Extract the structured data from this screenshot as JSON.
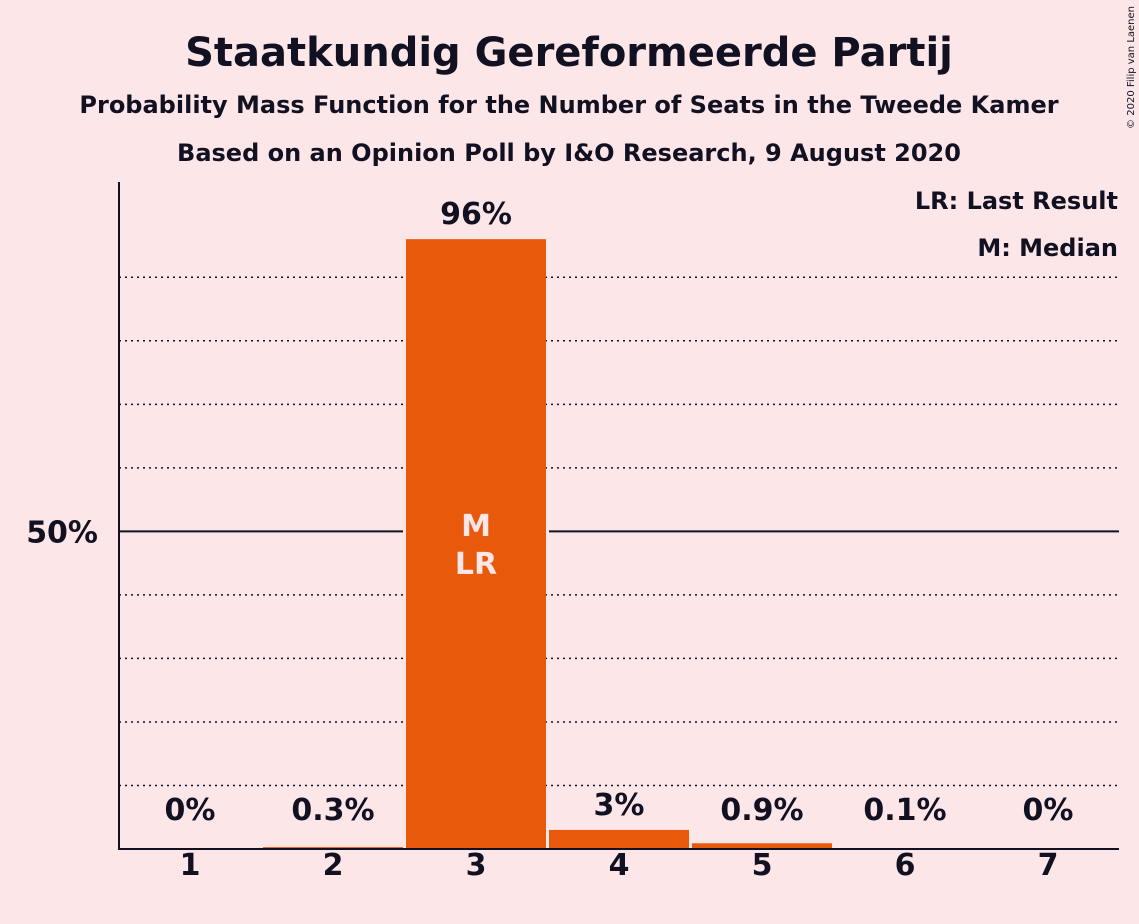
{
  "title": "Staatkundig Gereformeerde Partij",
  "subtitle1": "Probability Mass Function for the Number of Seats in the Tweede Kamer",
  "subtitle2": "Based on an Opinion Poll by I&O Research, 9 August 2020",
  "copyright": "© 2020 Filip van Laenen",
  "legend": {
    "lr": "LR: Last Result",
    "m": "M: Median"
  },
  "colors": {
    "background": "#fde6e8",
    "bar": "#e8590c",
    "text": "#111122"
  },
  "chart_data": {
    "type": "bar",
    "categories": [
      "1",
      "2",
      "3",
      "4",
      "5",
      "6",
      "7"
    ],
    "values": [
      0,
      0.3,
      96,
      3,
      0.9,
      0.1,
      0
    ],
    "data_labels": [
      "0%",
      "0.3%",
      "96%",
      "3%",
      "0.9%",
      "0.1%",
      "0%"
    ],
    "ylim": [
      0,
      105
    ],
    "y_ticks": [
      {
        "value": 50,
        "label": "50%"
      }
    ],
    "gridlines": [
      10,
      20,
      30,
      40,
      60,
      70,
      80,
      90
    ],
    "median_category": "3",
    "last_result_category": "3",
    "median_marker": "M",
    "last_result_marker": "LR"
  }
}
